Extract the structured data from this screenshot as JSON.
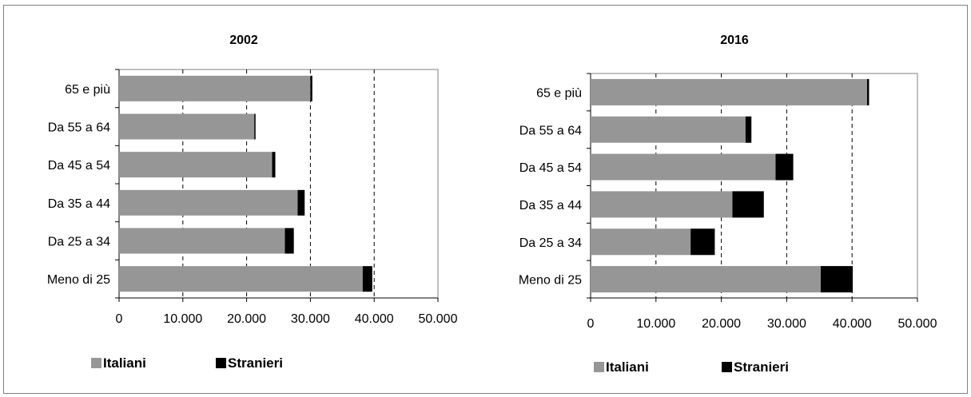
{
  "header": {
    "caption": ""
  },
  "colors": {
    "italiani": "#969696",
    "stranieri": "#000000",
    "axis": "#808080",
    "grid": "#000000"
  },
  "legend": {
    "italiani": "Italiani",
    "stranieri": "Stranieri"
  },
  "chart_data": [
    {
      "type": "bar",
      "orientation": "horizontal",
      "stacked": true,
      "title": "2002",
      "categories": [
        "65 e più",
        "Da 55 a 64",
        "Da 45 a 54",
        "Da 35 a 44",
        "Da 25 a 34",
        "Meno di 25"
      ],
      "series": [
        {
          "name": "Italiani",
          "values": [
            30000,
            21200,
            24000,
            28000,
            26000,
            38200
          ]
        },
        {
          "name": "Stranieri",
          "values": [
            300,
            200,
            500,
            1100,
            1400,
            1500
          ]
        }
      ],
      "xlim": [
        0,
        50000
      ],
      "xticks": [
        "0",
        "10.000",
        "20.000",
        "30.000",
        "40.000",
        "50.000"
      ],
      "grid": "dashed vertical",
      "legend_position": "bottom"
    },
    {
      "type": "bar",
      "orientation": "horizontal",
      "stacked": true,
      "title": "2016",
      "categories": [
        "65 e più",
        "Da 55 a 64",
        "Da 45 a 54",
        "Da 35 a 44",
        "Da 25 a 34",
        "Meno di 25"
      ],
      "series": [
        {
          "name": "Italiani",
          "values": [
            42300,
            23700,
            28300,
            21700,
            15300,
            35200
          ]
        },
        {
          "name": "Stranieri",
          "values": [
            300,
            900,
            2700,
            4800,
            3700,
            4900
          ]
        }
      ],
      "xlim": [
        0,
        50000
      ],
      "xticks": [
        "0",
        "10.000",
        "20.000",
        "30.000",
        "40.000",
        "50.000"
      ],
      "grid": "dashed vertical",
      "legend_position": "bottom"
    }
  ]
}
